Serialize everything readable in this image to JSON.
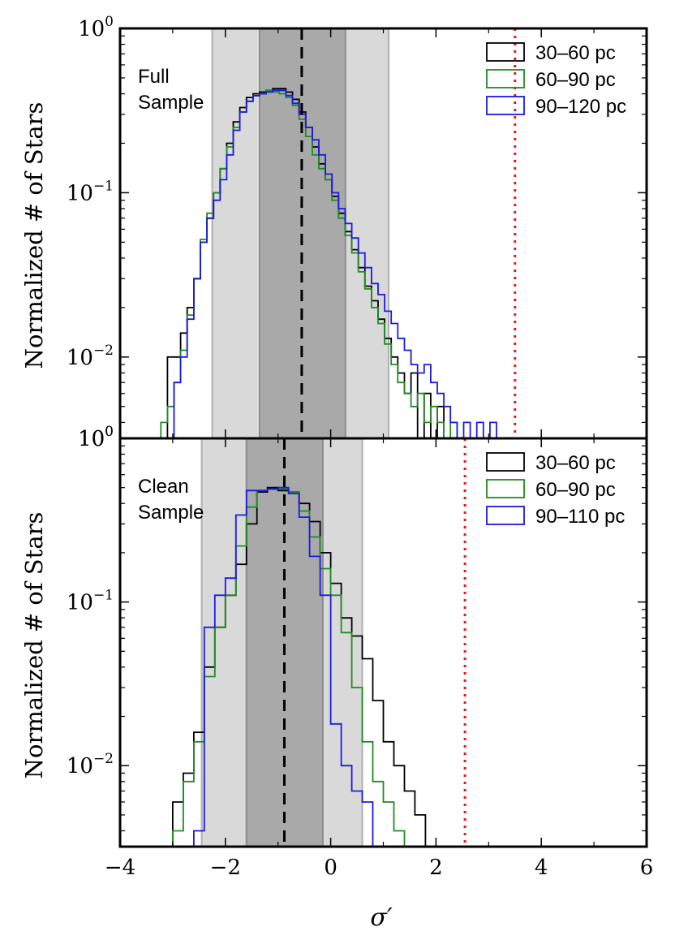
{
  "figure": {
    "ylabel": "Normalized # of Stars",
    "xlabel": "σ′",
    "x_ticks": [
      "−4",
      "−2",
      "0",
      "2",
      "4",
      "6"
    ],
    "y_ticks_top": [
      {
        "base": "10",
        "exp": "0"
      },
      {
        "base": "10",
        "exp": "−1"
      },
      {
        "base": "10",
        "exp": "−2"
      },
      {
        "base": "10",
        "exp": "0"
      }
    ],
    "y_ticks_bottom": [
      {
        "base": "10",
        "exp": "0"
      },
      {
        "base": "10",
        "exp": "−1"
      },
      {
        "base": "10",
        "exp": "−2"
      }
    ]
  },
  "chart_data": [
    {
      "type": "line",
      "panel": "top",
      "label": [
        "Full",
        "Sample"
      ],
      "xlim": [
        -4,
        6
      ],
      "ylim": [
        0.0032,
        1.0
      ],
      "yscale": "log",
      "bins": {
        "start": -3.6,
        "width": 0.125
      },
      "bands": {
        "median": -0.55,
        "sigma1": [
          -1.35,
          0.28
        ],
        "sigma2": [
          -2.25,
          1.1
        ]
      },
      "threshold": 3.5,
      "colors": {
        "30–60 pc": "#000000",
        "60–90 pc": "#228b22",
        "90–120 pc": "#1a1ae6",
        "threshold": "#e31a1c",
        "band1": "#a9a9a9",
        "band2": "#d9d9d9"
      },
      "series": [
        {
          "name": "30–60 pc",
          "values": [
            0,
            0,
            0,
            0,
            0.01,
            0.01,
            0.014,
            0.02,
            0.03,
            0.05,
            0.07,
            0.1,
            0.14,
            0.2,
            0.27,
            0.33,
            0.38,
            0.4,
            0.41,
            0.42,
            0.43,
            0.43,
            0.41,
            0.37,
            0.31,
            0.25,
            0.19,
            0.15,
            0.12,
            0.095,
            0.075,
            0.058,
            0.045,
            0.035,
            0.027,
            0.022,
            0.017,
            0.013,
            0.01,
            0.008,
            0.006,
            0.008,
            0,
            0.006,
            0,
            0.005,
            0,
            0,
            0,
            0,
            0,
            0,
            0,
            0,
            0,
            0,
            0,
            0,
            0,
            0,
            0,
            0,
            0,
            0,
            0,
            0,
            0,
            0,
            0,
            0,
            0,
            0,
            0,
            0,
            0,
            0,
            0,
            0,
            0,
            0
          ]
        },
        {
          "name": "60–90 pc",
          "values": [
            0,
            0,
            0,
            0.004,
            0.005,
            0.007,
            0.011,
            0.018,
            0.03,
            0.052,
            0.075,
            0.1,
            0.14,
            0.19,
            0.25,
            0.31,
            0.36,
            0.39,
            0.4,
            0.42,
            0.41,
            0.4,
            0.38,
            0.34,
            0.28,
            0.22,
            0.17,
            0.14,
            0.12,
            0.09,
            0.07,
            0.055,
            0.043,
            0.033,
            0.026,
            0.02,
            0.016,
            0.012,
            0.009,
            0.007,
            0.006,
            0.005,
            0.006,
            0.004,
            0.005,
            0.004,
            0,
            0.004,
            0,
            0,
            0,
            0,
            0,
            0,
            0,
            0,
            0,
            0,
            0,
            0,
            0,
            0,
            0,
            0,
            0,
            0,
            0,
            0,
            0,
            0,
            0,
            0,
            0,
            0,
            0,
            0,
            0,
            0,
            0,
            0
          ]
        },
        {
          "name": "90–120 pc",
          "values": [
            0,
            0,
            0,
            0,
            0,
            0.007,
            0.01,
            0.017,
            0.03,
            0.05,
            0.07,
            0.09,
            0.12,
            0.17,
            0.24,
            0.31,
            0.36,
            0.39,
            0.4,
            0.41,
            0.42,
            0.42,
            0.39,
            0.35,
            0.3,
            0.25,
            0.21,
            0.17,
            0.13,
            0.1,
            0.08,
            0.065,
            0.053,
            0.043,
            0.035,
            0.028,
            0.024,
            0.019,
            0.016,
            0.013,
            0.011,
            0.009,
            0.008,
            0.009,
            0.007,
            0.006,
            0.005,
            0.004,
            0,
            0.004,
            0,
            0.004,
            0,
            0.004,
            0,
            0,
            0,
            0,
            0,
            0,
            0,
            0,
            0,
            0,
            0,
            0,
            0,
            0,
            0,
            0,
            0,
            0,
            0,
            0,
            0,
            0,
            0,
            0,
            0,
            0
          ]
        }
      ]
    },
    {
      "type": "line",
      "panel": "bottom",
      "label": [
        "Clean",
        "Sample"
      ],
      "xlim": [
        -4,
        6
      ],
      "ylim": [
        0.0032,
        1.0
      ],
      "yscale": "log",
      "bins": {
        "start": -3.6,
        "width": 0.2
      },
      "bands": {
        "median": -0.88,
        "sigma1": [
          -1.6,
          -0.15
        ],
        "sigma2": [
          -2.45,
          0.6
        ]
      },
      "threshold": 2.55,
      "colors": {
        "30–60 pc": "#000000",
        "60–90 pc": "#228b22",
        "90–110 pc": "#1a1ae6",
        "threshold": "#e31a1c",
        "band1": "#a9a9a9",
        "band2": "#d9d9d9"
      },
      "series": [
        {
          "name": "30–60 pc",
          "values": [
            0,
            0,
            0.003,
            0.006,
            0.009,
            0.016,
            0.04,
            0.07,
            0.11,
            0.17,
            0.3,
            0.47,
            0.5,
            0.48,
            0.47,
            0.4,
            0.31,
            0.2,
            0.13,
            0.08,
            0.062,
            0.045,
            0.025,
            0.014,
            0.01,
            0.007,
            0.005,
            0,
            0,
            0,
            0,
            0,
            0,
            0,
            0,
            0,
            0,
            0,
            0,
            0,
            0,
            0,
            0,
            0,
            0,
            0,
            0,
            0,
            0,
            0
          ]
        },
        {
          "name": "60–90 pc",
          "values": [
            0,
            0,
            0,
            0.004,
            0.008,
            0.014,
            0.035,
            0.07,
            0.11,
            0.22,
            0.38,
            0.48,
            0.49,
            0.49,
            0.47,
            0.36,
            0.25,
            0.16,
            0.11,
            0.065,
            0.03,
            0.014,
            0.008,
            0.006,
            0.004,
            0,
            0,
            0,
            0,
            0,
            0,
            0,
            0,
            0,
            0,
            0,
            0,
            0,
            0,
            0,
            0,
            0,
            0,
            0,
            0,
            0,
            0,
            0,
            0,
            0
          ]
        },
        {
          "name": "90–110 pc",
          "values": [
            0,
            0,
            0,
            0,
            0.003,
            0.004,
            0.07,
            0.11,
            0.14,
            0.34,
            0.48,
            0.48,
            0.49,
            0.5,
            0.46,
            0.33,
            0.19,
            0.11,
            0.018,
            0.01,
            0.007,
            0.006,
            0,
            0,
            0,
            0,
            0,
            0,
            0,
            0,
            0,
            0,
            0,
            0,
            0,
            0,
            0,
            0,
            0,
            0,
            0,
            0,
            0,
            0,
            0,
            0,
            0,
            0,
            0,
            0
          ]
        }
      ]
    }
  ]
}
